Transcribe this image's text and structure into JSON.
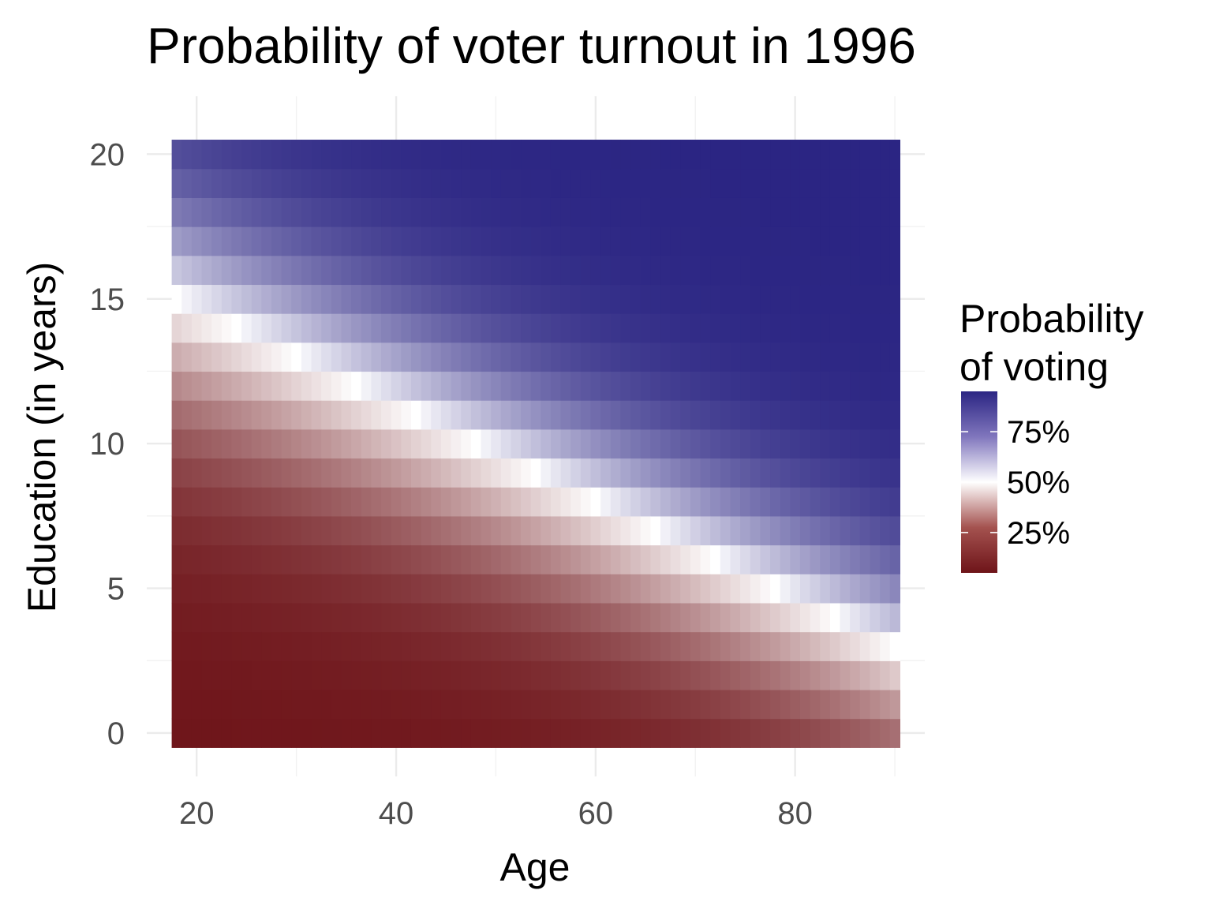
{
  "chart_data": {
    "type": "heatmap",
    "title": "Probability of voter turnout in 1996",
    "xlabel": "Age",
    "ylabel": "Education (in years)",
    "xlim": [
      15,
      93
    ],
    "ylim": [
      -1.5,
      22
    ],
    "x_range": [
      18,
      90
    ],
    "y_range": [
      0,
      20
    ],
    "x_ticks": [
      20,
      40,
      60,
      80
    ],
    "y_ticks": [
      0,
      5,
      10,
      15,
      20
    ],
    "grid": true,
    "model": {
      "description": "Heatmap cells color = predicted probability of voting; 50% contour runs from about education 15 at age 18 to about education 3 at age 90",
      "contour_50": [
        [
          18,
          15
        ],
        [
          90,
          3
        ]
      ]
    },
    "color_scale": {
      "low": "#6e1419",
      "mid": "#ffffff",
      "high": "#2b2583",
      "midpoint": 0.5
    },
    "legend": {
      "title_line1": "Probability",
      "title_line2": "of voting",
      "position": "right",
      "breaks": [
        {
          "value": 0.75,
          "label": "75%"
        },
        {
          "value": 0.5,
          "label": "50%"
        },
        {
          "value": 0.25,
          "label": "25%"
        }
      ],
      "range": [
        0.05,
        0.95
      ]
    }
  }
}
